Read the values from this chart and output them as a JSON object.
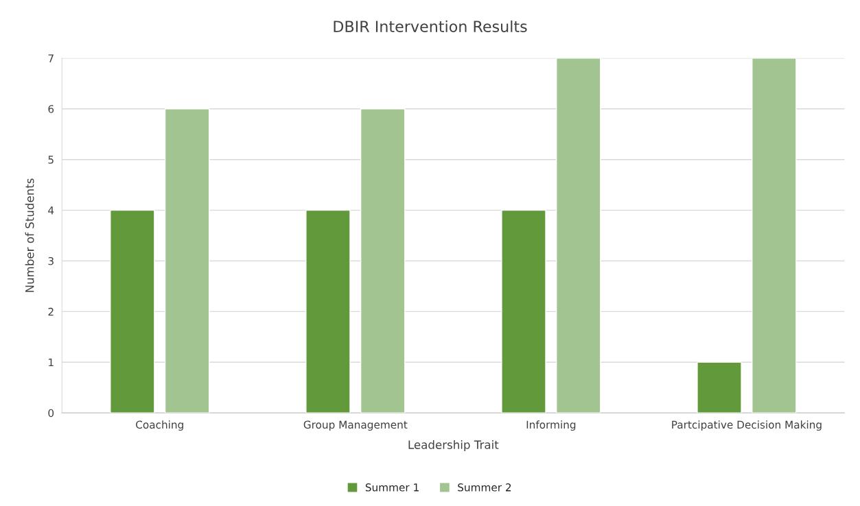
{
  "chart_data": {
    "type": "bar",
    "title": "DBIR Intervention Results",
    "xlabel": "Leadership Trait",
    "ylabel": "Number of Students",
    "categories": [
      "Coaching",
      "Group Management",
      "Informing",
      "Partcipative Decision Making"
    ],
    "series": [
      {
        "name": "Summer 1",
        "color": "#629a3b",
        "values": [
          4,
          4,
          4,
          1
        ]
      },
      {
        "name": "Summer 2",
        "color": "#a1c490",
        "values": [
          6,
          6,
          7,
          7
        ]
      }
    ],
    "ylim": [
      0,
      7
    ],
    "yticks": [
      0,
      1,
      2,
      3,
      4,
      5,
      6,
      7
    ],
    "grid": "y",
    "legend": "bottom"
  }
}
